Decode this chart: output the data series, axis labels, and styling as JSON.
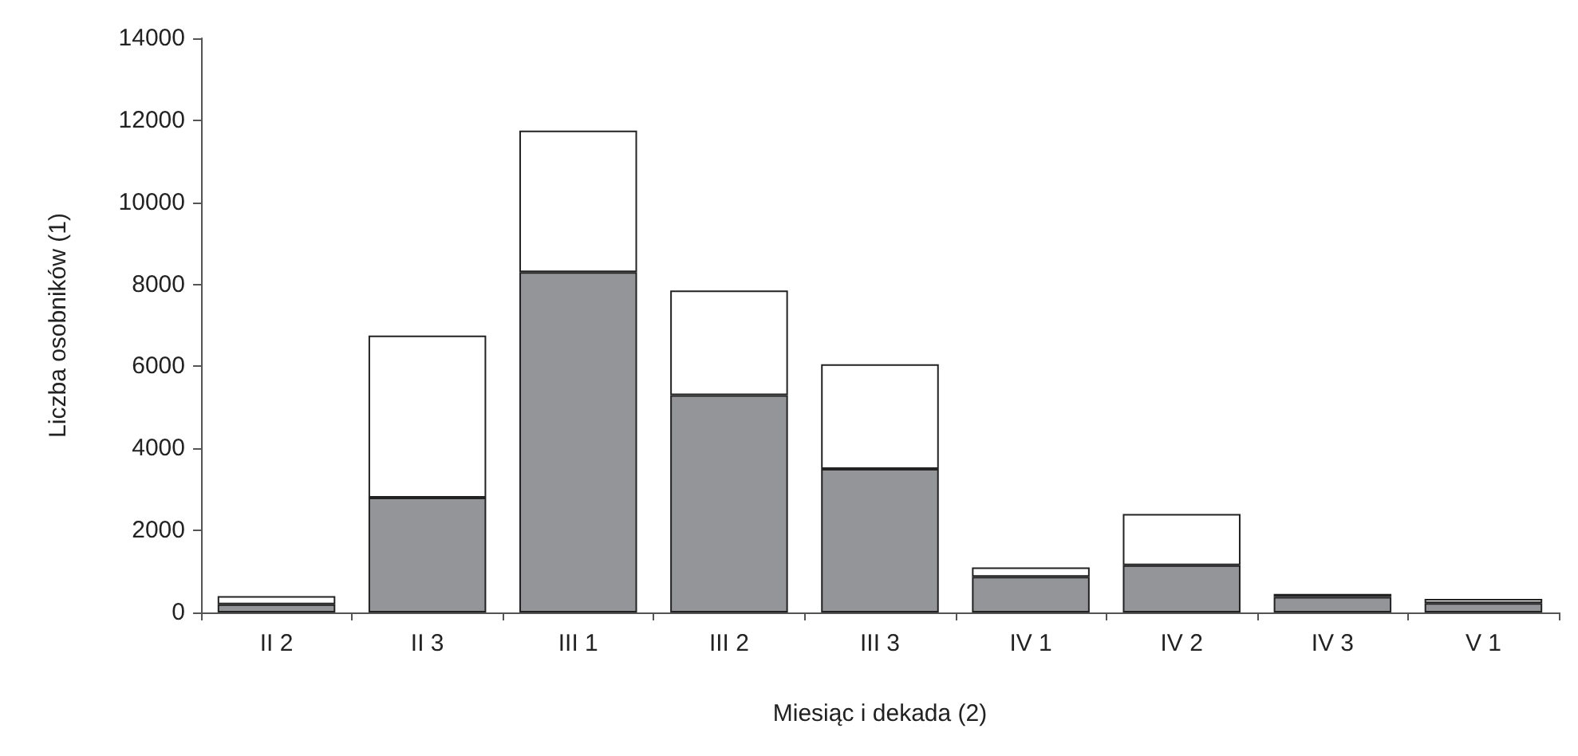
{
  "chart_data": {
    "type": "bar",
    "xlabel": "Miesiąc i dekada (2)",
    "ylabel": "Liczba osobników (1)",
    "categories": [
      "II 2",
      "II 3",
      "III 1",
      "III 2",
      "III 3",
      "IV 1",
      "IV 2",
      "IV 3",
      "V 1"
    ],
    "stacked": true,
    "series": [
      {
        "color": "#939598",
        "values": [
          200,
          2800,
          8300,
          5300,
          3500,
          870,
          1150,
          380,
          230
        ]
      },
      {
        "color": "#ffffff",
        "values": [
          200,
          3950,
          3450,
          2550,
          2550,
          230,
          1250,
          70,
          100
        ]
      }
    ],
    "ylim": [
      0,
      14000
    ],
    "yticks": [
      0,
      2000,
      4000,
      6000,
      8000,
      10000,
      12000,
      14000
    ],
    "grid": false
  }
}
